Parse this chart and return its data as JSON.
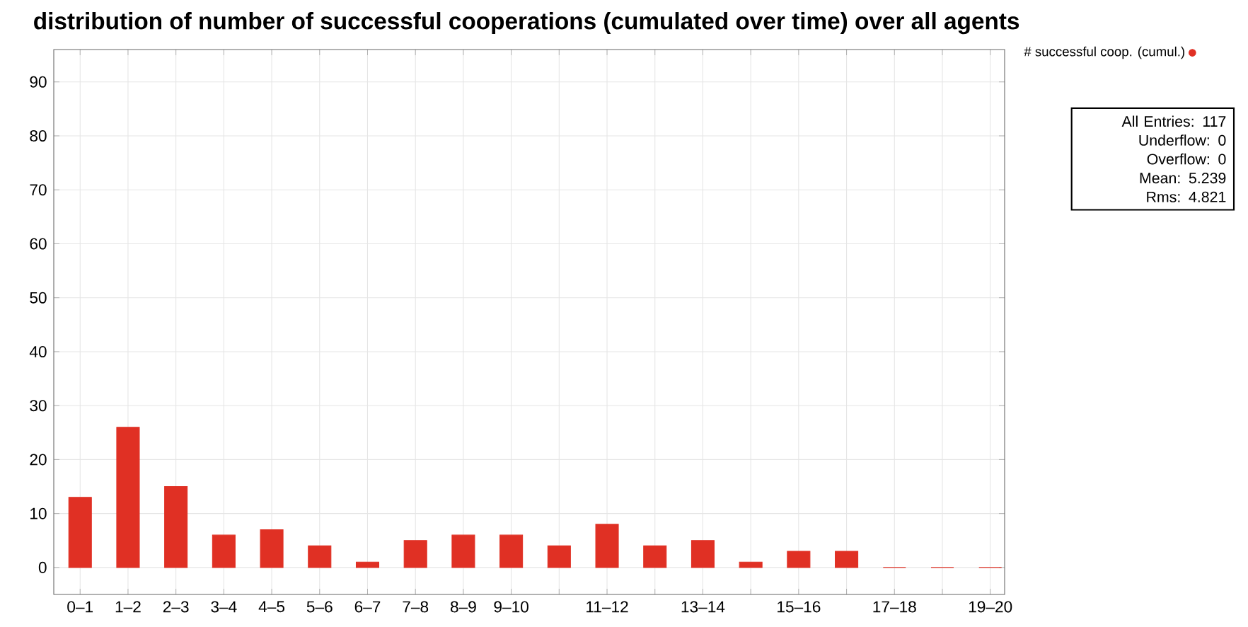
{
  "chart_data": {
    "type": "bar",
    "title": "distribution of number of successful cooperations (cumulated over time) over all agents",
    "categories": [
      "0–1",
      "1–2",
      "2–3",
      "3–4",
      "4–5",
      "5–6",
      "6–7",
      "7–8",
      "8–9",
      "9–10",
      null,
      "11–12",
      null,
      "13–14",
      null,
      "15–16",
      null,
      "17–18",
      null,
      "19–20"
    ],
    "series": [
      {
        "name": "# successful coop. (cumul.)",
        "color": "#e03024",
        "values": [
          13,
          26,
          15,
          6,
          7,
          4,
          1,
          5,
          6,
          6,
          4,
          8,
          4,
          5,
          1,
          3,
          3,
          0,
          0,
          0
        ]
      }
    ],
    "ylim": [
      -5,
      96
    ],
    "yticks": [
      0,
      10,
      20,
      30,
      40,
      50,
      60,
      70,
      80,
      90
    ],
    "grid": true,
    "legend": "top right",
    "marker": "circle",
    "annotations": [
      "All Entries: 117",
      "Underflow: 0",
      "Overflow: 0",
      "Mean: 5.239",
      "Rms: 4.821"
    ]
  }
}
